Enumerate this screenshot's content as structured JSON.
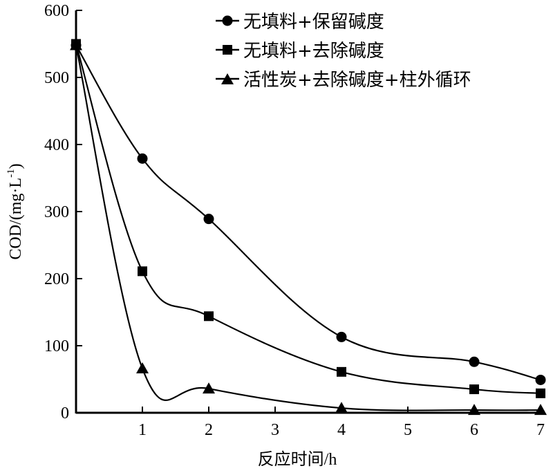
{
  "chart_data": {
    "type": "line",
    "title": "",
    "xlabel": "反应时间/h",
    "ylabel": "COD/(mg·L",
    "ylabel_sup": "-1",
    "ylabel_close": ")",
    "xlim": [
      0,
      7
    ],
    "ylim": [
      0,
      600
    ],
    "x_ticks": [
      1,
      2,
      3,
      4,
      5,
      6,
      7
    ],
    "y_ticks": [
      0,
      100,
      200,
      300,
      400,
      500,
      600
    ],
    "grid": false,
    "legend_position": "top-right",
    "series": [
      {
        "name": "无填料+保留碱度",
        "marker": "circle",
        "x": [
          0,
          1,
          2,
          4,
          6,
          7
        ],
        "values": [
          548,
          379,
          289,
          113,
          76,
          49
        ]
      },
      {
        "name": "无填料+去除碱度",
        "marker": "square",
        "x": [
          0,
          1,
          2,
          4,
          6,
          7
        ],
        "values": [
          550,
          211,
          144,
          61,
          35,
          29
        ]
      },
      {
        "name": "活性炭+去除碱度+柱外循环",
        "marker": "triangle",
        "x": [
          0,
          1,
          2,
          4,
          6,
          7
        ],
        "values": [
          548,
          66,
          36,
          7,
          4,
          4
        ]
      }
    ],
    "colors": {
      "line": "#000000",
      "background": "#ffffff"
    }
  }
}
